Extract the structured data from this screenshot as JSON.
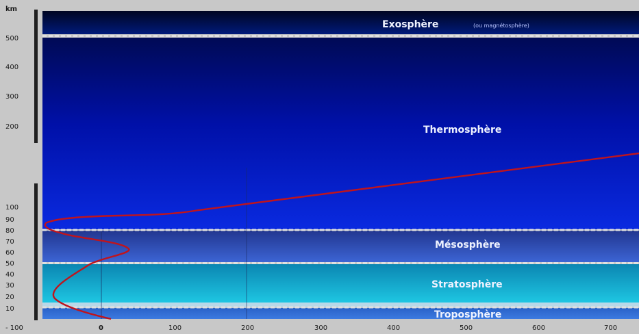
{
  "axis_title": "km",
  "y_ticks": [
    "500",
    "400",
    "300",
    "200",
    "100",
    "90",
    "80",
    "70",
    "60",
    "50",
    "40",
    "30",
    "20",
    "10"
  ],
  "x_ticks": [
    "- 100",
    "0",
    "100",
    "200",
    "300",
    "400",
    "500",
    "600",
    "700"
  ],
  "layers": {
    "exosphere": {
      "label": "Exosphère",
      "note": "(ou magnétosphère)"
    },
    "thermosphere": {
      "label": "Thermosphère"
    },
    "mesosphere": {
      "label": "Mésosphère"
    },
    "stratosphere": {
      "label": "Stratosphère"
    },
    "troposphere": {
      "label": "Troposphère"
    }
  },
  "colors": {
    "temperature_curve": "#c0141c",
    "boundary": "#dcdcdc"
  }
}
